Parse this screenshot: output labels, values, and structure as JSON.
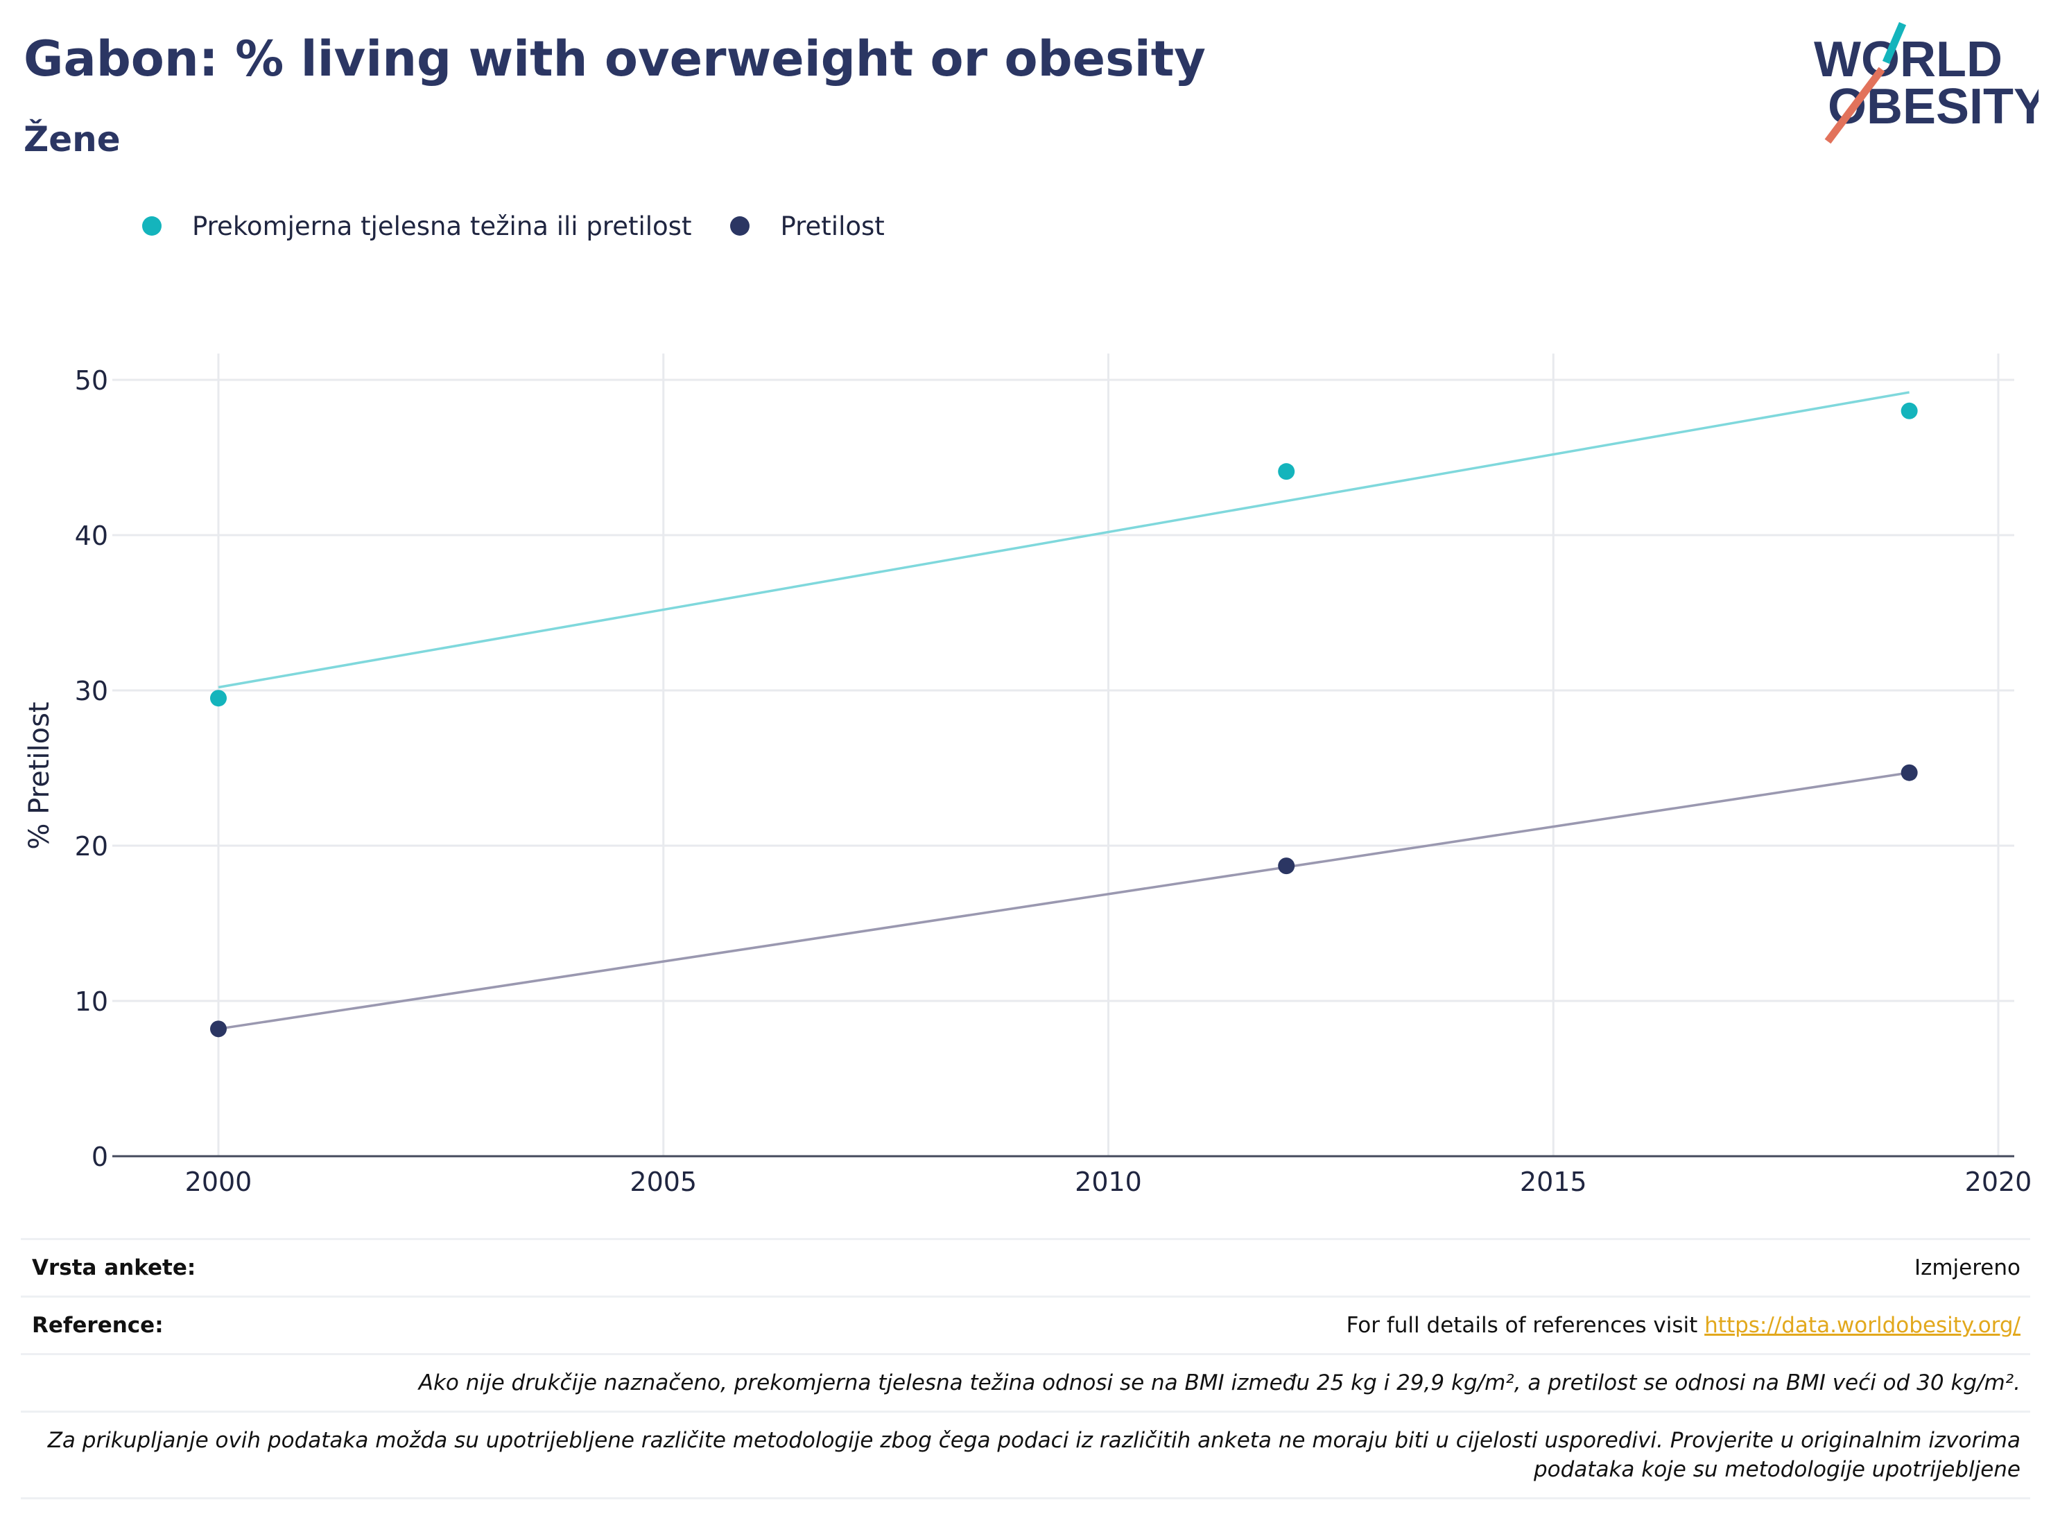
{
  "header": {
    "title": "Gabon: % living with overweight or obesity",
    "subtitle": "Žene"
  },
  "logo": {
    "line1": "WORLD",
    "line2": "OBESITY"
  },
  "colors": {
    "overweight": "#14b4bc",
    "overweight_trend": "#7fd8dc",
    "obesity": "#2b3663",
    "obesity_trend": "#9a98b0",
    "title": "#2b3663",
    "link": "#e2a81c"
  },
  "chart_data": {
    "type": "scatter",
    "ylabel": "% Pretilost",
    "xlim": [
      1999,
      2020.3
    ],
    "ylim": [
      0,
      52
    ],
    "x_ticks": [
      2000,
      2005,
      2010,
      2015,
      2020
    ],
    "y_ticks": [
      0,
      10,
      20,
      30,
      40,
      50
    ],
    "grid": true,
    "legend_position": "top-left",
    "series": [
      {
        "name": "Prekomjerna tjelesna težina ili pretilost",
        "color": "#14b4bc",
        "trend_color": "#7fd8dc",
        "x": [
          2000,
          2012,
          2019
        ],
        "y": [
          29.5,
          44.1,
          48.0
        ],
        "trend": [
          [
            2000,
            30.2
          ],
          [
            2019,
            49.2
          ]
        ]
      },
      {
        "name": "Pretilost",
        "color": "#2b3663",
        "trend_color": "#9a98b0",
        "x": [
          2000,
          2012,
          2019
        ],
        "y": [
          8.2,
          18.7,
          24.7
        ],
        "trend": [
          [
            2000,
            8.2
          ],
          [
            2019,
            24.7
          ]
        ]
      }
    ]
  },
  "footer": {
    "survey_label": "Vrsta ankete:",
    "survey_value": "Izmjereno",
    "reference_label": "Reference:",
    "reference_text": "For full details of references visit ",
    "reference_link": "https://data.worldobesity.org/",
    "note1": "Ako nije drukčije naznačeno, prekomjerna tjelesna težina odnosi se na BMI između 25 kg i 29,9 kg/m², a pretilost se odnosi na BMI veći od 30 kg/m².",
    "note2_line1": "Za prikupljanje ovih podataka možda su upotrijebljene različite metodologije zbog čega podaci iz različitih anketa ne moraju biti u cijelosti usporedivi. Provjerite u originalnim izvorima",
    "note2_line2": "podataka koje su metodologije upotrijebljene"
  }
}
